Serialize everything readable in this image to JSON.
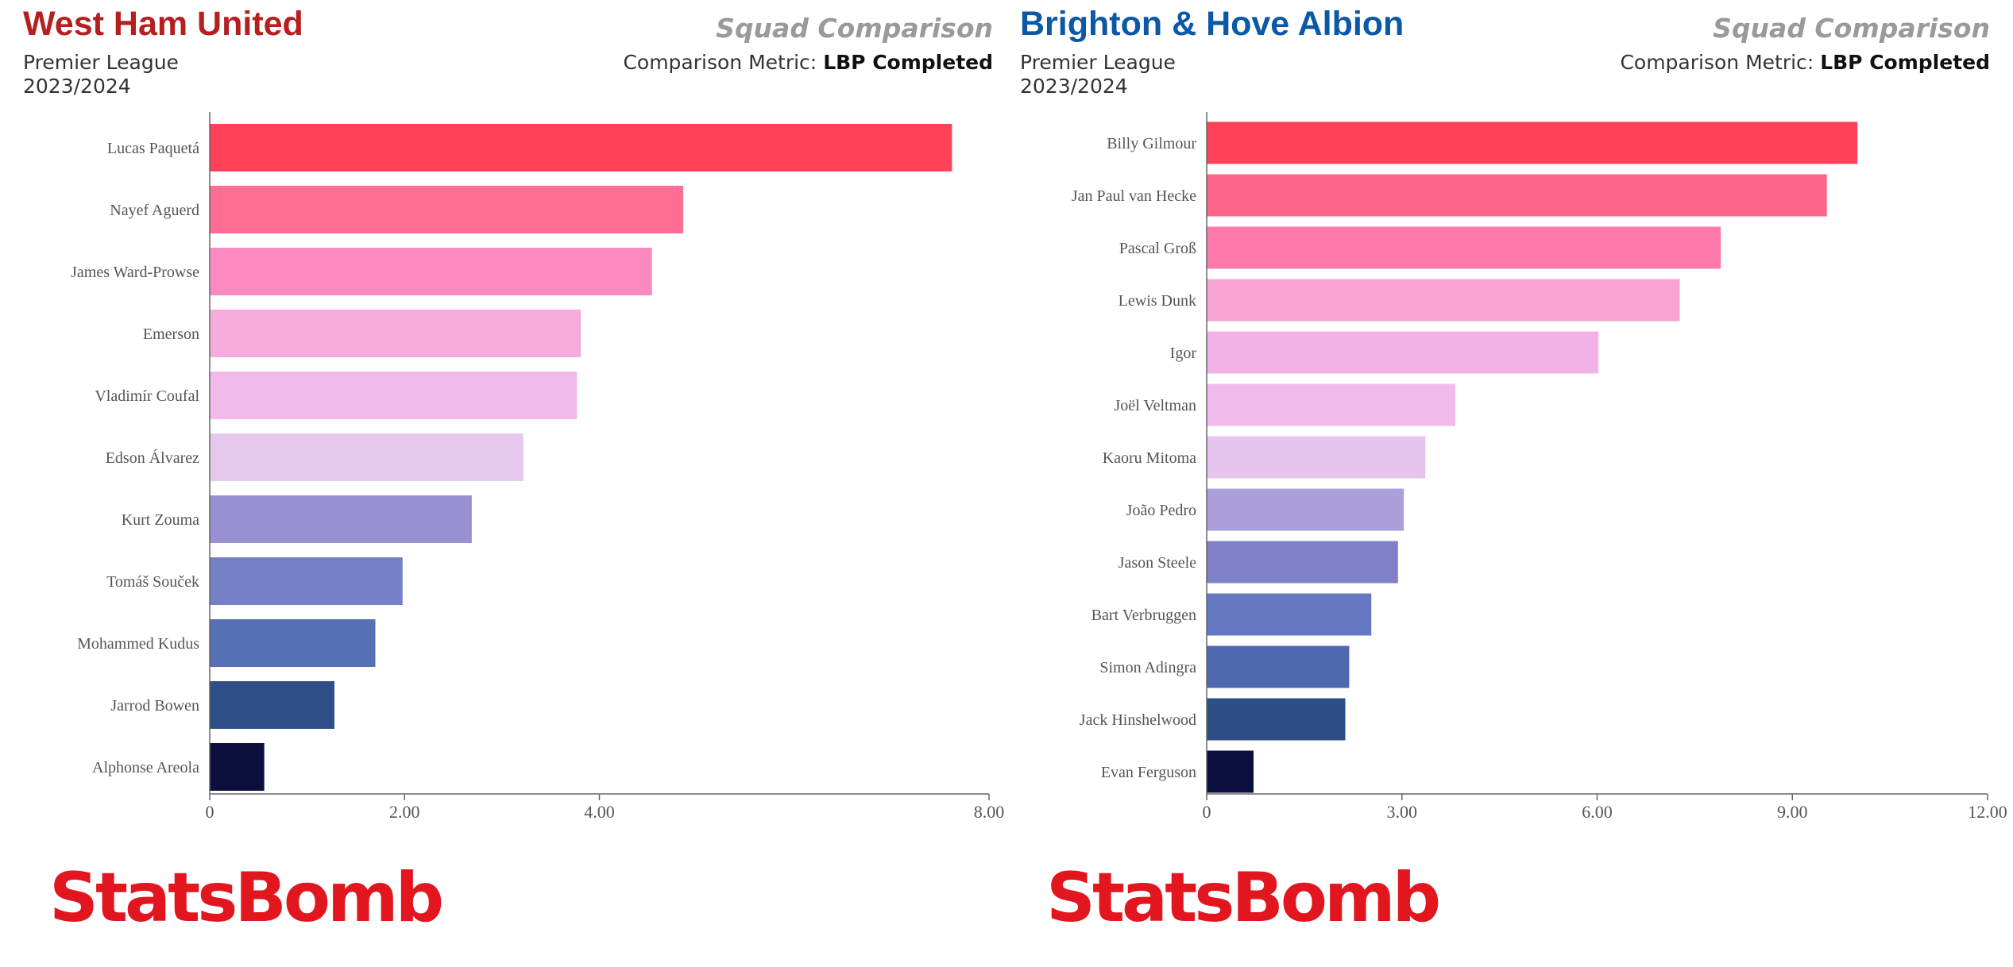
{
  "colors": {
    "west_ham_title": "#b5201f",
    "brighton_title": "#0a58a6",
    "logo": "#e2161f"
  },
  "panels": [
    {
      "team": "West Ham United",
      "team_color": "#b5201f",
      "league": "Premier League",
      "season": "2023/2024",
      "title": "Squad Comparison",
      "metric_label": "Comparison Metric:",
      "metric_value": "LBP Completed",
      "logo_text": "StatsBomb"
    },
    {
      "team": "Brighton & Hove Albion",
      "team_color": "#0a58a6",
      "league": "Premier League",
      "season": "2023/2024",
      "title": "Squad Comparison",
      "metric_label": "Comparison Metric:",
      "metric_value": "LBP Completed",
      "logo_text": "StatsBomb"
    }
  ],
  "chart_data": [
    {
      "type": "bar",
      "orientation": "horizontal",
      "title": "",
      "xlabel": "",
      "ylabel": "",
      "xlim": [
        0,
        8
      ],
      "xticks": [
        0,
        2,
        4,
        8
      ],
      "xtick_labels": [
        "0",
        "2.00",
        "4.00",
        "8.00"
      ],
      "grid": false,
      "categories": [
        "Lucas Paquetá",
        "Nayef Aguerd",
        "James Ward-Prowse",
        "Emerson",
        "Vladimír Coufal",
        "Edson Álvarez",
        "Kurt Zouma",
        "Tomáš Souček",
        "Mohammed Kudus",
        "Jarrod Bowen",
        "Alphonse Areola"
      ],
      "values": [
        7.62,
        4.86,
        4.54,
        3.81,
        3.77,
        3.22,
        2.69,
        1.98,
        1.7,
        1.28,
        0.56
      ],
      "colors": [
        "#ff4259",
        "#ff6c94",
        "#fc8ac0",
        "#f5acdc",
        "#f1baeb",
        "#e6c7ee",
        "#9990d1",
        "#7580c7",
        "#5670b6",
        "#2f4f89",
        "#0c0e3e"
      ]
    },
    {
      "type": "bar",
      "orientation": "horizontal",
      "title": "",
      "xlabel": "",
      "ylabel": "",
      "xlim": [
        0,
        12
      ],
      "xticks": [
        0,
        3,
        6,
        9,
        12
      ],
      "xtick_labels": [
        "0",
        "3.00",
        "6.00",
        "9.00",
        "12.00"
      ],
      "grid": false,
      "categories": [
        "Billy Gilmour",
        "Jan Paul van Hecke",
        "Pascal Groß",
        "Lewis Dunk",
        "Igor",
        "Joël Veltman",
        "Kaoru Mitoma",
        "João Pedro",
        "Jason Steele",
        "Bart Verbruggen",
        "Simon Adingra",
        "Jack Hinshelwood",
        "Evan Ferguson"
      ],
      "values": [
        10.0,
        9.53,
        7.9,
        7.27,
        6.02,
        3.82,
        3.36,
        3.03,
        2.94,
        2.53,
        2.19,
        2.13,
        0.72
      ],
      "colors": [
        "#ff4259",
        "#ff6489",
        "#ff7aab",
        "#f7a3d3",
        "#f3b2e6",
        "#f1baeb",
        "#e6c4ee",
        "#ac9ed9",
        "#8080c8",
        "#6578c1",
        "#5068b0",
        "#2e4f86",
        "#0b0f40"
      ]
    }
  ]
}
